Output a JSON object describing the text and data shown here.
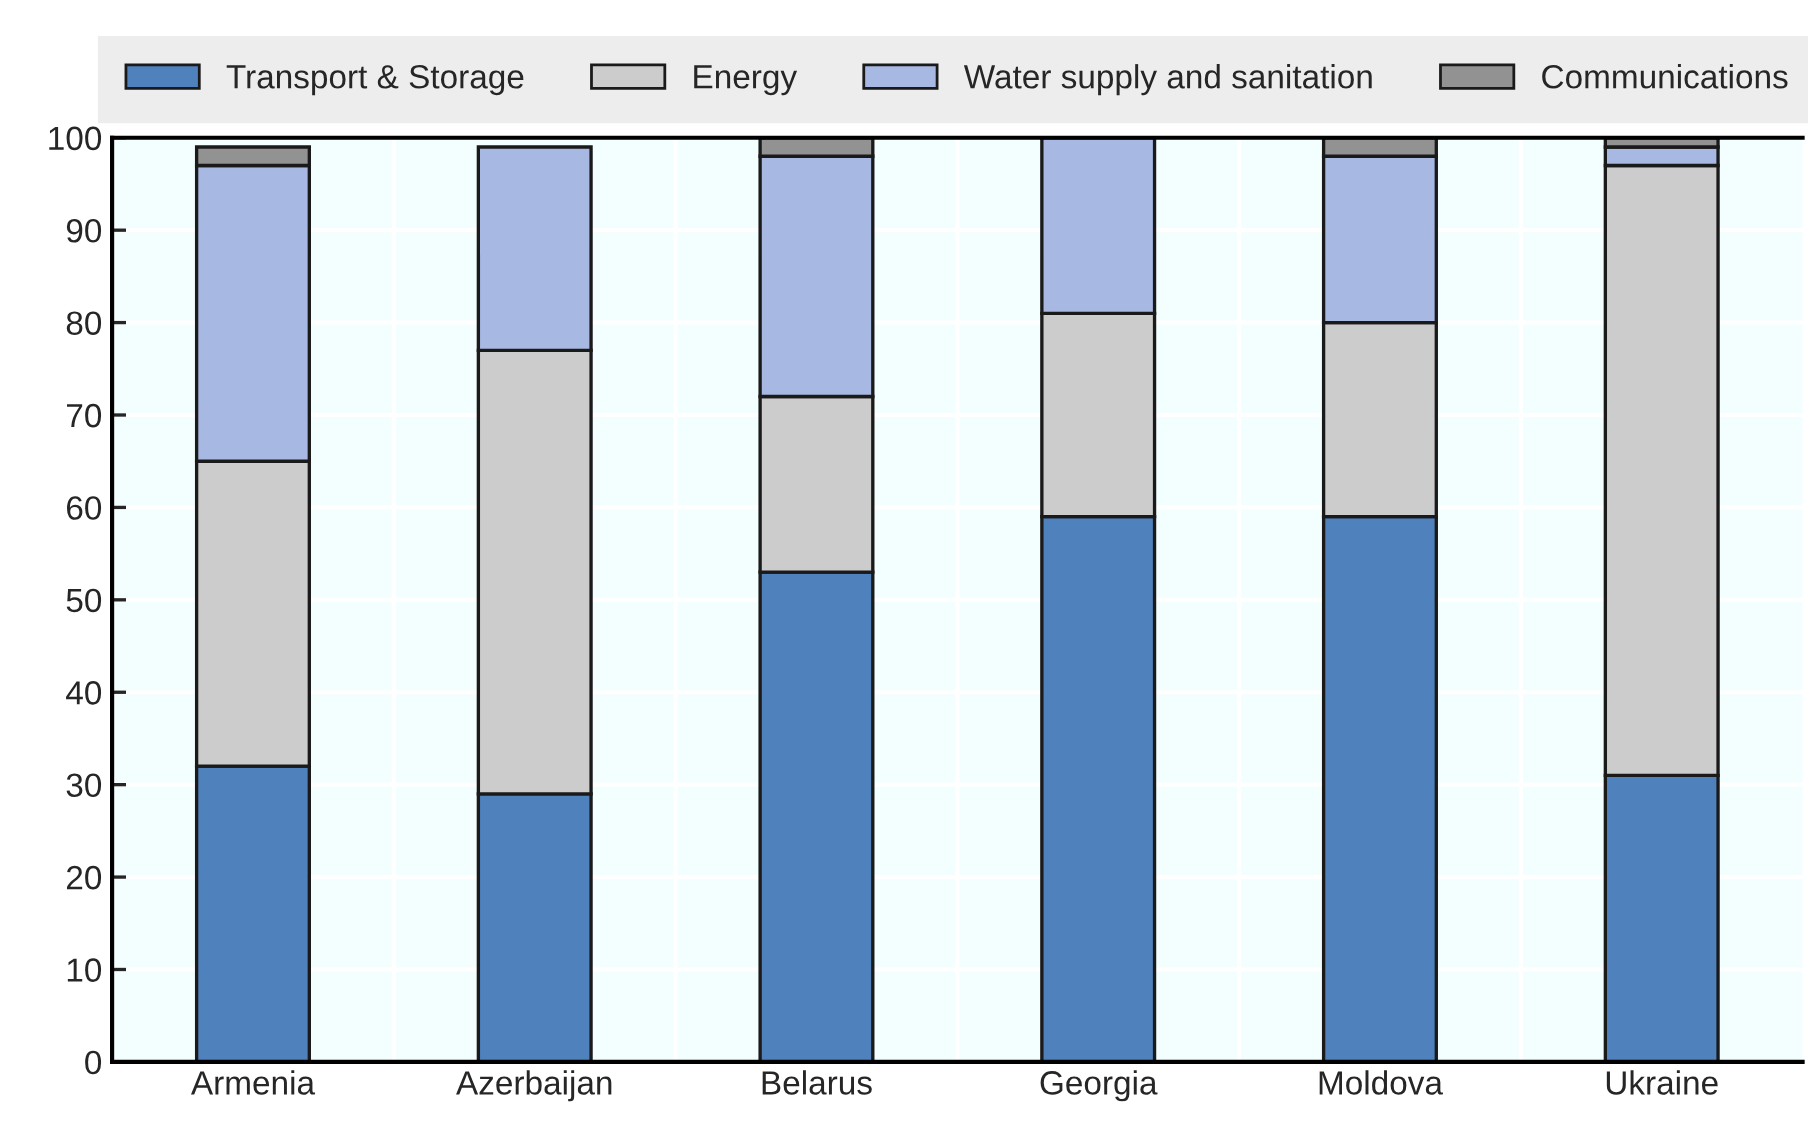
{
  "chart_data": {
    "type": "bar",
    "stacked": true,
    "categories": [
      "Armenia",
      "Azerbaijan",
      "Belarus",
      "Georgia",
      "Moldova",
      "Ukraine"
    ],
    "series": [
      {
        "name": "Transport & Storage",
        "color": "#4f81bd",
        "values": [
          32,
          29,
          53,
          59,
          59,
          31
        ]
      },
      {
        "name": "Energy",
        "color": "#cccccc",
        "values": [
          33,
          48,
          19,
          22,
          21,
          66
        ]
      },
      {
        "name": "Water supply and sanitation",
        "color": "#a7b8e2",
        "values": [
          32,
          22,
          26,
          19,
          18,
          2
        ]
      },
      {
        "name": "Communications",
        "color": "#929292",
        "values": [
          2,
          null,
          2,
          null,
          2,
          1
        ]
      }
    ],
    "ylim": [
      0,
      100
    ],
    "yticks": [
      0,
      10,
      20,
      30,
      40,
      50,
      60,
      70,
      80,
      90,
      100
    ],
    "grid": true,
    "legend": "top"
  }
}
